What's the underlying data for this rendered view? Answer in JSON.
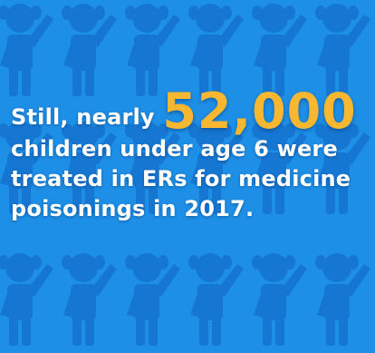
{
  "message": {
    "lead": "Still, nearly ",
    "stat": "52,000",
    "line2": "children under age 6 were",
    "line3": "treated in ERs for medicine",
    "line4": "poisonings in 2017."
  },
  "colors": {
    "background": "#1e8fe6",
    "figure": "#1673cf",
    "text": "#ffffff",
    "stat": "#f7b731"
  },
  "graphics": {
    "background_pattern": "child-figure-icon"
  }
}
